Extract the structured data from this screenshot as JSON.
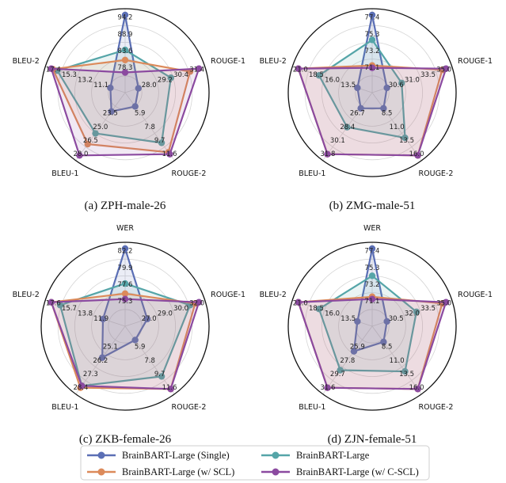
{
  "chart_data": [
    {
      "type": "radar",
      "caption": "(a) ZPH-male-26",
      "axes": [
        "WER",
        "ROUGE-1",
        "ROUGE-2",
        "BLEU-1",
        "BLEU-2"
      ],
      "tick_labels": {
        "WER": [
          "78.3",
          "83.6",
          "88.9",
          "94.2"
        ],
        "ROUGE-1": [
          "28.0",
          "29.2",
          "30.4",
          "31.4"
        ],
        "ROUGE-2": [
          "5.9",
          "7.8",
          "9.7",
          "11.6"
        ],
        "BLEU-1": [
          "23.5",
          "25.0",
          "26.5",
          "28.0"
        ],
        "BLEU-2": [
          "11.1",
          "13.2",
          "15.3",
          "17.4"
        ]
      },
      "series_levels": [
        [
          1.0,
          0.18,
          0.22,
          0.3,
          0.2
        ],
        [
          0.55,
          0.62,
          0.8,
          0.65,
          0.92
        ],
        [
          0.42,
          0.88,
          0.95,
          0.82,
          0.98
        ],
        [
          0.26,
          1.0,
          0.98,
          1.0,
          1.0
        ]
      ]
    },
    {
      "type": "radar",
      "caption": "(b) ZMG-male-51",
      "axes": [
        "WER",
        "ROUGE-1",
        "ROUGE-2",
        "BLEU-1",
        "BLEU-2"
      ],
      "tick_labels": {
        "WER": [
          "71.1",
          "73.2",
          "75.3",
          "77.4"
        ],
        "ROUGE-1": [
          "30.6",
          "31.0",
          "33.5",
          "35.0"
        ],
        "ROUGE-2": [
          "8.5",
          "11.0",
          "13.5",
          "16.0"
        ],
        "BLEU-1": [
          "26.7",
          "28.4",
          "30.1",
          "31.8"
        ],
        "BLEU-2": [
          "13.5",
          "16.0",
          "18.5",
          "21.0"
        ]
      },
      "series_levels": [
        [
          1.0,
          0.2,
          0.25,
          0.25,
          0.2
        ],
        [
          0.68,
          0.4,
          0.72,
          0.55,
          0.72
        ],
        [
          0.35,
          0.95,
          1.0,
          0.98,
          1.0
        ],
        [
          0.32,
          1.0,
          1.0,
          0.98,
          1.0
        ]
      ]
    },
    {
      "type": "radar",
      "caption": "(c) ZKB-female-26",
      "axes": [
        "WER",
        "ROUGE-1",
        "ROUGE-2",
        "BLEU-1",
        "BLEU-2"
      ],
      "tick_labels": {
        "WER": [
          "75.3",
          "77.6",
          "79.9",
          "82.2"
        ],
        "ROUGE-1": [
          "27.0",
          "29.0",
          "30.0",
          "32.0"
        ],
        "ROUGE-2": [
          "5.9",
          "7.8",
          "9.7",
          "11.6"
        ],
        "BLEU-1": [
          "25.1",
          "26.2",
          "27.3",
          "28.4"
        ],
        "BLEU-2": [
          "11.9",
          "13.8",
          "15.7",
          "17.6"
        ]
      },
      "series_levels": [
        [
          1.0,
          0.3,
          0.22,
          0.5,
          0.3
        ],
        [
          0.55,
          0.88,
          0.8,
          0.95,
          0.88
        ],
        [
          0.42,
          0.95,
          1.0,
          0.98,
          1.0
        ],
        [
          0.35,
          1.0,
          1.0,
          0.95,
          1.0
        ]
      ]
    },
    {
      "type": "radar",
      "caption": "(d) ZJN-female-51",
      "axes": [
        "WER",
        "ROUGE-1",
        "ROUGE-2",
        "BLEU-1",
        "BLEU-2"
      ],
      "tick_labels": {
        "WER": [
          "71.1",
          "73.2",
          "75.3",
          "77.4"
        ],
        "ROUGE-1": [
          "30.5",
          "32.0",
          "33.5",
          "35.0"
        ],
        "ROUGE-2": [
          "8.5",
          "11.0",
          "13.5",
          "16.0"
        ],
        "BLEU-1": [
          "25.9",
          "27.8",
          "29.7",
          "31.6"
        ],
        "BLEU-2": [
          "13.5",
          "16.0",
          "18.5",
          "21.0"
        ]
      },
      "series_levels": [
        [
          1.0,
          0.2,
          0.25,
          0.4,
          0.2
        ],
        [
          0.65,
          0.6,
          0.72,
          0.7,
          0.72
        ],
        [
          0.38,
          0.95,
          1.0,
          0.98,
          1.0
        ],
        [
          0.35,
          1.0,
          1.0,
          0.98,
          1.0
        ]
      ]
    }
  ],
  "series": [
    {
      "name": "BrainBART-Large (Single)",
      "color": "#5b6fb5"
    },
    {
      "name": "BrainBART-Large",
      "color": "#55a5a8"
    },
    {
      "name": "BrainBART-Large (w/ SCL)",
      "color": "#dc8a5a"
    },
    {
      "name": "BrainBART-Large (w/ C-SCL)",
      "color": "#8b4aa0"
    }
  ]
}
